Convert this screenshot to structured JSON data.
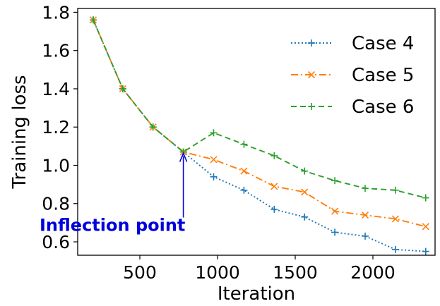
{
  "chart_data": {
    "type": "line",
    "xlabel": "Iteration",
    "ylabel": "Training loss",
    "xlim": [
      100,
      2400
    ],
    "ylim": [
      0.53,
      1.82
    ],
    "xticks": [
      500,
      1000,
      1500,
      2000
    ],
    "xtick_labels": [
      "500",
      "1000",
      "1500",
      "2000"
    ],
    "yticks": [
      0.6,
      0.8,
      1.0,
      1.2,
      1.4,
      1.6,
      1.8
    ],
    "ytick_labels": [
      "0.6",
      "0.8",
      "1.0",
      "1.2",
      "1.4",
      "1.6",
      "1.8"
    ],
    "grid": false,
    "legend_position": "top-right",
    "x": [
      200,
      390,
      585,
      780,
      975,
      1170,
      1365,
      1560,
      1755,
      1950,
      2145,
      2340
    ],
    "series": [
      {
        "name": "Case 4",
        "color": "#1f77b4",
        "line_style": "dotted",
        "marker": "plus",
        "values": [
          1.76,
          1.4,
          1.2,
          1.07,
          0.94,
          0.87,
          0.77,
          0.73,
          0.65,
          0.63,
          0.56,
          0.55
        ]
      },
      {
        "name": "Case 5",
        "color": "#ff7f0e",
        "line_style": "dashdot",
        "marker": "x",
        "values": [
          1.76,
          1.4,
          1.2,
          1.07,
          1.03,
          0.97,
          0.89,
          0.86,
          0.76,
          0.74,
          0.72,
          0.68
        ]
      },
      {
        "name": "Case 6",
        "color": "#2ca02c",
        "line_style": "dashed",
        "marker": "plus",
        "values": [
          1.76,
          1.4,
          1.2,
          1.07,
          1.17,
          1.11,
          1.05,
          0.97,
          0.92,
          0.88,
          0.87,
          0.83
        ]
      }
    ],
    "annotation": {
      "text": "Inflection point",
      "color": "#0000dd",
      "point_x": 780,
      "point_y": 1.07,
      "text_x": 200,
      "text_y": 0.72
    }
  }
}
